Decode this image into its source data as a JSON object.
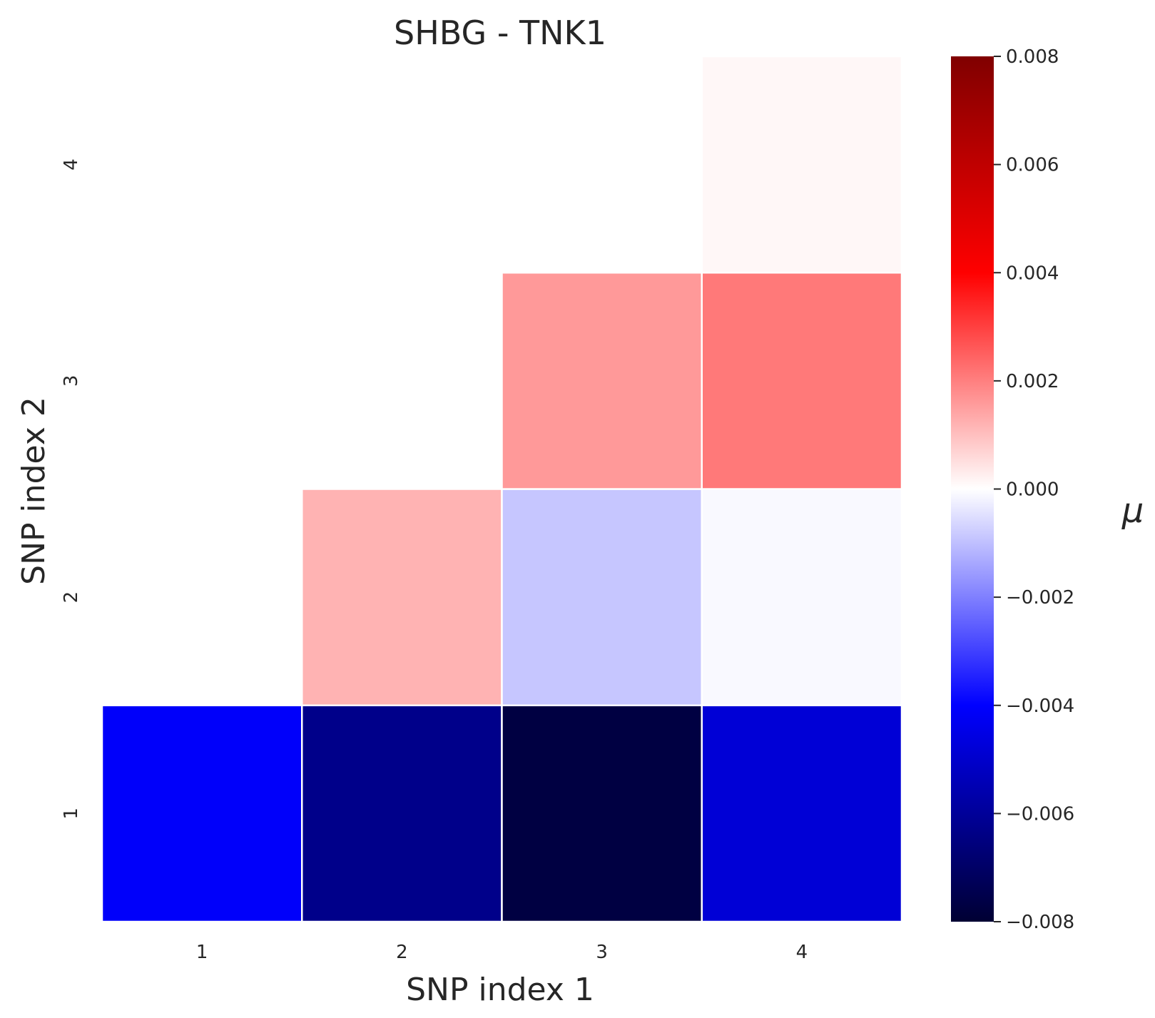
{
  "chart_data": {
    "type": "heatmap",
    "title": "SHBG - TNK1",
    "xlabel": "SNP index 1",
    "ylabel": "SNP index 2",
    "x_categories": [
      "1",
      "2",
      "3",
      "4"
    ],
    "y_categories": [
      "1",
      "2",
      "3",
      "4"
    ],
    "cells": [
      {
        "x": "1",
        "y": "1",
        "value": -0.0041
      },
      {
        "x": "2",
        "y": "1",
        "value": -0.0063
      },
      {
        "x": "3",
        "y": "1",
        "value": -0.0077
      },
      {
        "x": "4",
        "y": "1",
        "value": -0.0048
      },
      {
        "x": "2",
        "y": "2",
        "value": 0.0012
      },
      {
        "x": "3",
        "y": "2",
        "value": -0.0009
      },
      {
        "x": "4",
        "y": "2",
        "value": -0.0001
      },
      {
        "x": "3",
        "y": "3",
        "value": 0.0016
      },
      {
        "x": "4",
        "y": "3",
        "value": 0.0021
      },
      {
        "x": "4",
        "y": "4",
        "value": 0.00012
      }
    ],
    "masked": "lower-left triangle (x < y) not shown",
    "colorbar": {
      "label": "μ",
      "colormap": "seismic",
      "vmin": -0.008,
      "vmax": 0.008,
      "ticks": [
        0.008,
        0.006,
        0.004,
        0.002,
        0.0,
        -0.002,
        -0.004,
        -0.006,
        -0.008
      ],
      "tick_labels": [
        "0.008",
        "0.006",
        "0.004",
        "0.002",
        "0.000",
        "−0.002",
        "−0.004",
        "−0.006",
        "−0.008"
      ]
    },
    "grid": false,
    "cell_separator_color": "#ffffff"
  }
}
